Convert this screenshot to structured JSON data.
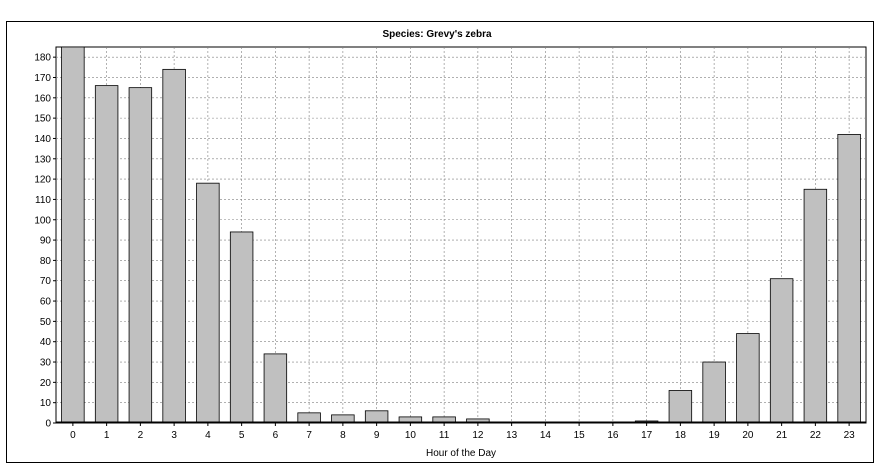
{
  "chart_data": {
    "type": "bar",
    "title": "Species: Grevy's zebra",
    "xlabel": "Hour of the Day",
    "ylabel": "",
    "categories": [
      "0",
      "1",
      "2",
      "3",
      "4",
      "5",
      "6",
      "7",
      "8",
      "9",
      "10",
      "11",
      "12",
      "13",
      "14",
      "15",
      "16",
      "17",
      "18",
      "19",
      "20",
      "21",
      "22",
      "23"
    ],
    "values": [
      185,
      166,
      165,
      174,
      118,
      94,
      34,
      5,
      4,
      6,
      3,
      3,
      2,
      0,
      0,
      0,
      0,
      1,
      16,
      30,
      44,
      71,
      115,
      142
    ],
    "ylim": [
      0,
      185
    ],
    "yticks": [
      0,
      10,
      20,
      30,
      40,
      50,
      60,
      70,
      80,
      90,
      100,
      110,
      120,
      130,
      140,
      150,
      160,
      170,
      180
    ],
    "grid": true,
    "bar_color": "#c0c0c0",
    "bar_stroke": "#000000",
    "grid_color": "#808080"
  }
}
